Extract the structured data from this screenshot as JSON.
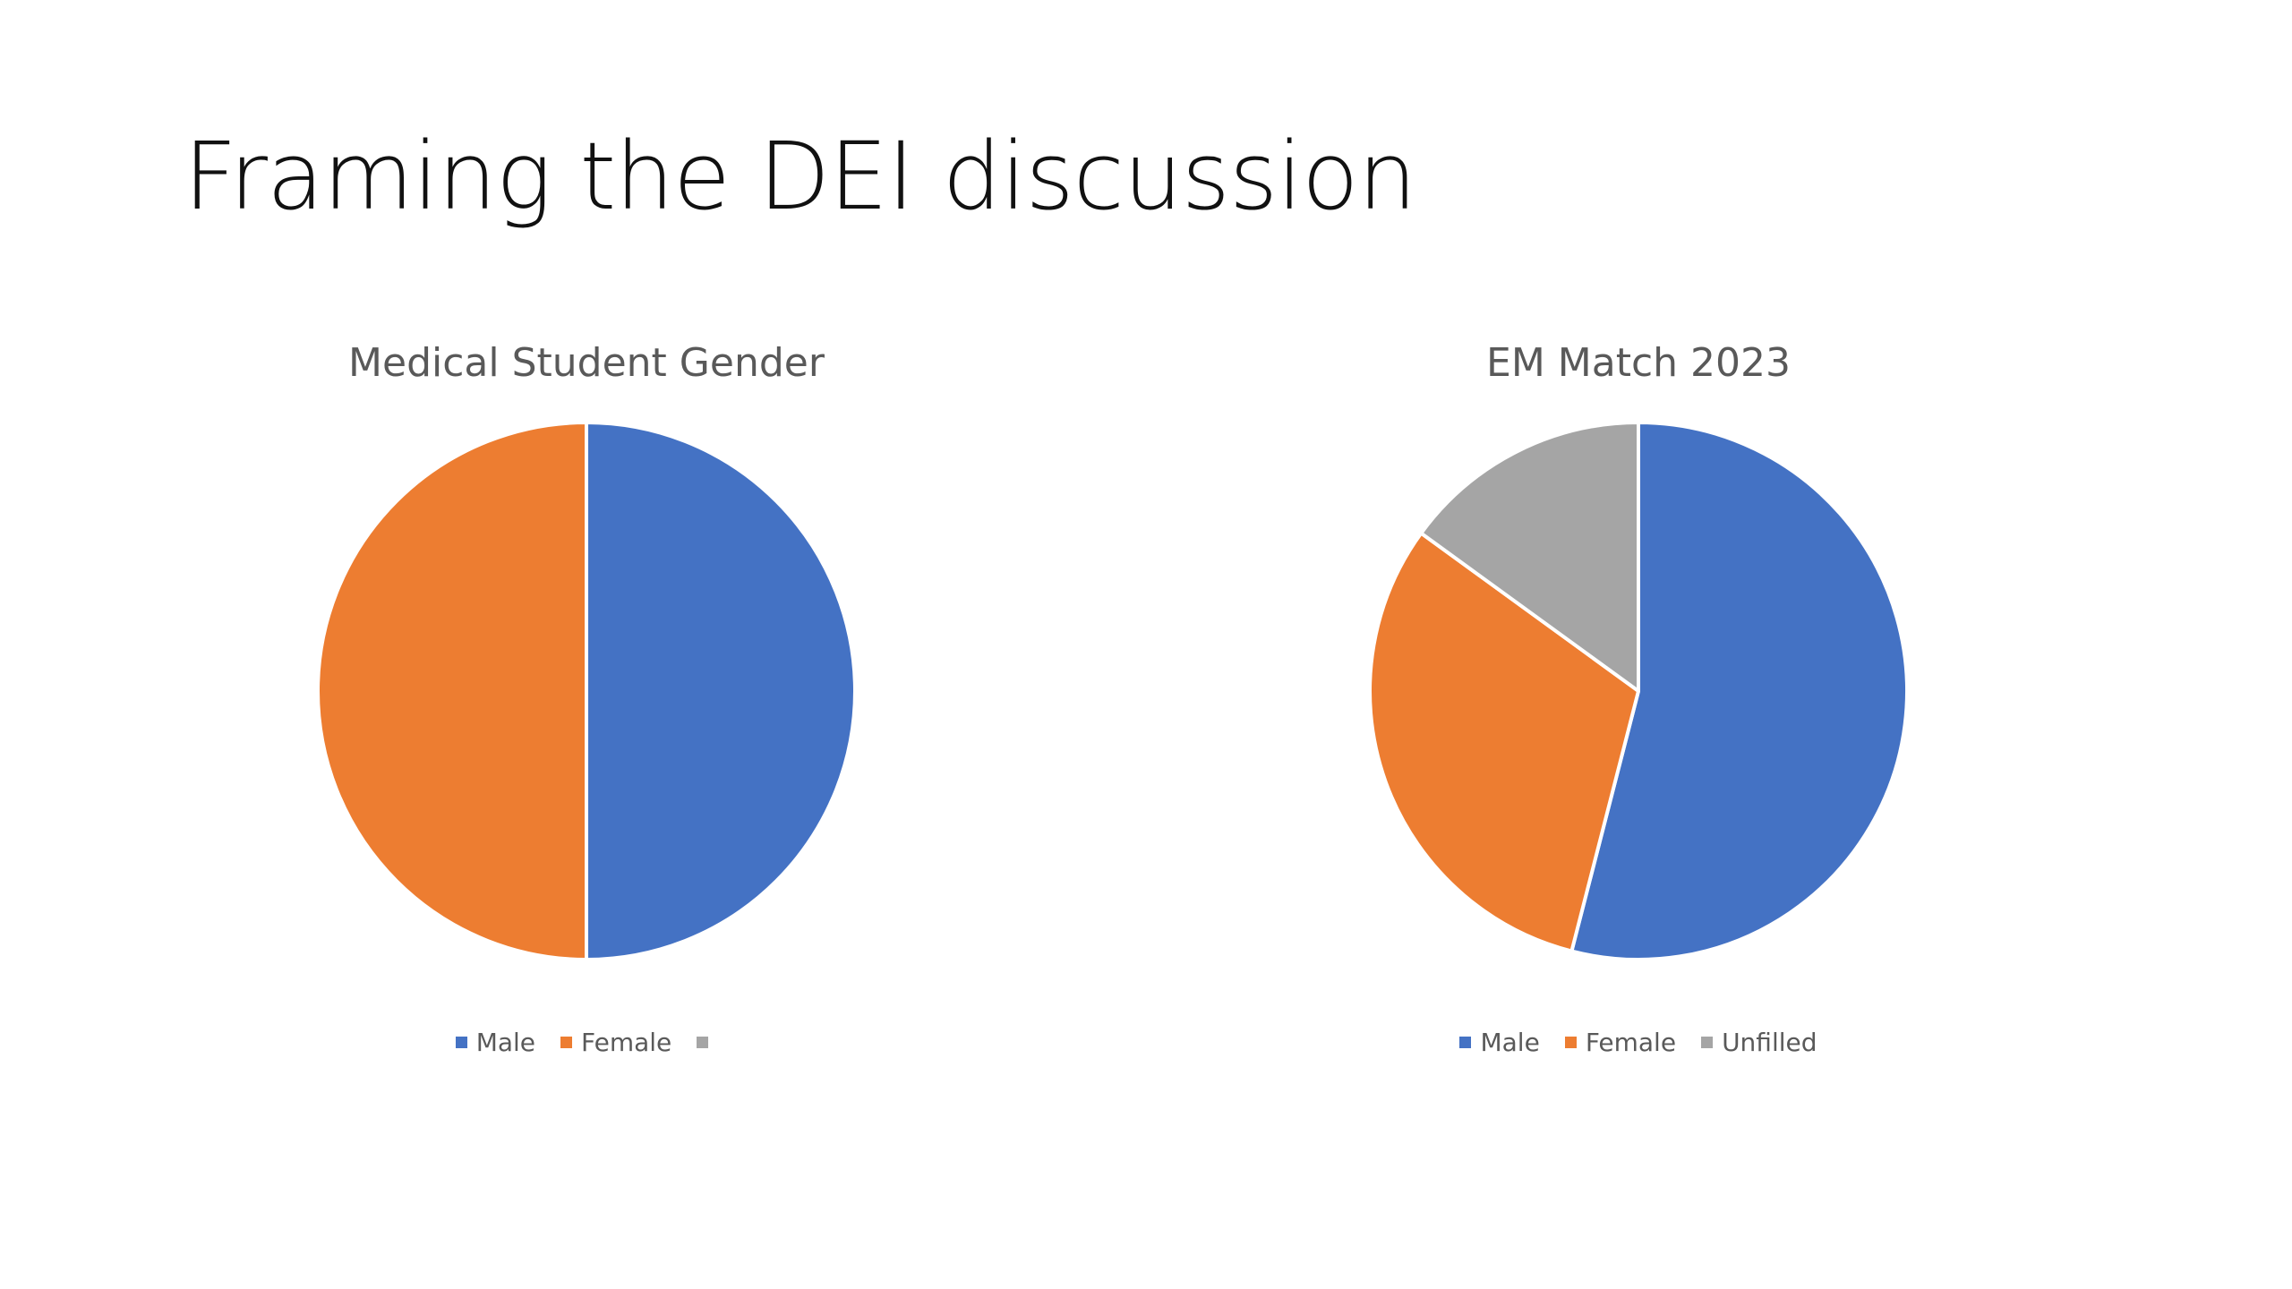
{
  "slide": {
    "title": "Framing the DEI discussion"
  },
  "colors": {
    "male": "#4472C4",
    "female": "#ED7D31",
    "unfilled": "#A5A5A5"
  },
  "chart_data": [
    {
      "type": "pie",
      "title": "Medical Student Gender",
      "categories": [
        "Male",
        "Female",
        ""
      ],
      "values": [
        50,
        50,
        0
      ],
      "colors": [
        "#4472C4",
        "#ED7D31",
        "#A5A5A5"
      ],
      "legend": "bottom"
    },
    {
      "type": "pie",
      "title": "EM Match 2023",
      "categories": [
        "Male",
        "Female",
        "Unfilled"
      ],
      "values": [
        54,
        31,
        15
      ],
      "colors": [
        "#4472C4",
        "#ED7D31",
        "#A5A5A5"
      ],
      "legend": "bottom"
    }
  ]
}
